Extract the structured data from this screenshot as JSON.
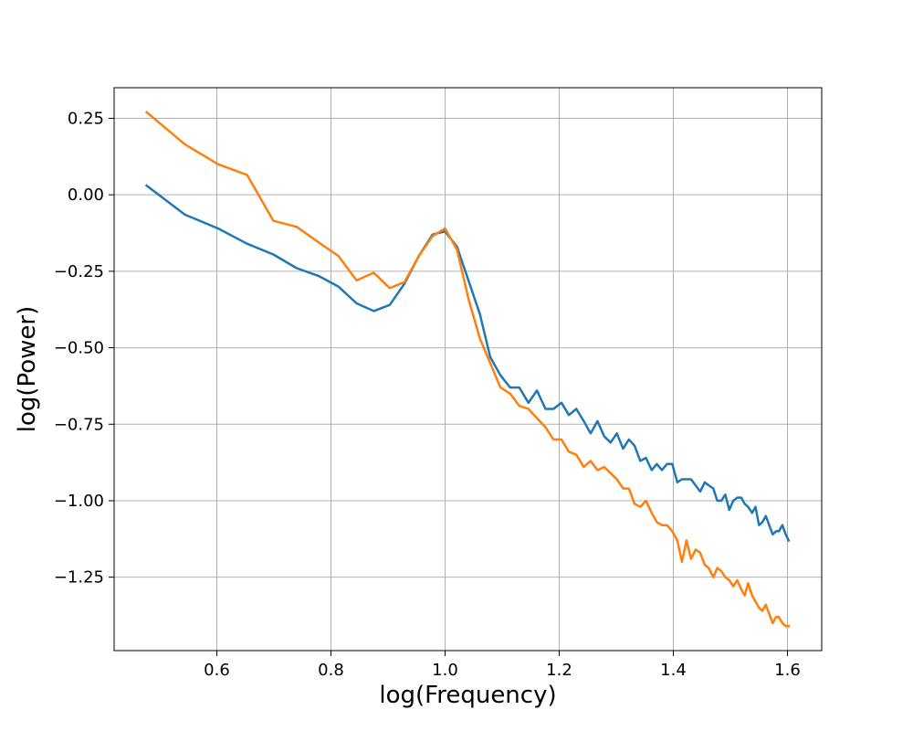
{
  "chart_data": {
    "type": "line",
    "title": "",
    "xlabel": "log(Frequency)",
    "ylabel": "log(Power)",
    "xlim": [
      0.42,
      1.66
    ],
    "ylim": [
      -1.49,
      0.35
    ],
    "xticks": [
      0.6,
      0.8,
      1.0,
      1.2,
      1.4,
      1.6
    ],
    "xtick_labels": [
      "0.6",
      "0.8",
      "1.0",
      "1.2",
      "1.4",
      "1.6"
    ],
    "yticks": [
      0.25,
      0.0,
      -0.25,
      -0.5,
      -0.75,
      -1.0,
      -1.25
    ],
    "ytick_labels": [
      "0.25",
      "0.00",
      "−0.25",
      "−0.50",
      "−0.75",
      "−1.00",
      "−1.25"
    ],
    "grid": true,
    "legend": "none",
    "series": [
      {
        "color": "#1f77b4",
        "x": [
          0.477,
          0.544,
          0.602,
          0.653,
          0.699,
          0.74,
          0.778,
          0.813,
          0.845,
          0.875,
          0.903,
          0.929,
          0.954,
          0.978,
          1.0,
          1.021,
          1.041,
          1.061,
          1.079,
          1.097,
          1.114,
          1.13,
          1.146,
          1.161,
          1.176,
          1.19,
          1.204,
          1.217,
          1.23,
          1.243,
          1.255,
          1.267,
          1.279,
          1.29,
          1.301,
          1.312,
          1.322,
          1.332,
          1.342,
          1.352,
          1.362,
          1.371,
          1.38,
          1.389,
          1.398,
          1.407,
          1.415,
          1.423,
          1.431,
          1.439,
          1.447,
          1.455,
          1.462,
          1.47,
          1.477,
          1.484,
          1.491,
          1.498,
          1.505,
          1.512,
          1.519,
          1.525,
          1.531,
          1.538,
          1.544,
          1.55,
          1.556,
          1.562,
          1.568,
          1.574,
          1.58,
          1.585,
          1.591,
          1.597,
          1.602
        ],
        "y": [
          0.03,
          -0.065,
          -0.11,
          -0.16,
          -0.195,
          -0.24,
          -0.265,
          -0.3,
          -0.355,
          -0.38,
          -0.36,
          -0.29,
          -0.2,
          -0.13,
          -0.12,
          -0.17,
          -0.28,
          -0.39,
          -0.53,
          -0.59,
          -0.63,
          -0.63,
          -0.68,
          -0.64,
          -0.7,
          -0.7,
          -0.68,
          -0.72,
          -0.7,
          -0.74,
          -0.78,
          -0.74,
          -0.79,
          -0.81,
          -0.78,
          -0.83,
          -0.8,
          -0.82,
          -0.87,
          -0.86,
          -0.9,
          -0.88,
          -0.9,
          -0.88,
          -0.88,
          -0.94,
          -0.93,
          -0.93,
          -0.93,
          -0.95,
          -0.97,
          -0.94,
          -0.95,
          -0.96,
          -1.0,
          -1.0,
          -0.98,
          -1.03,
          -1.0,
          -0.99,
          -0.99,
          -1.01,
          -1.02,
          -1.04,
          -1.02,
          -1.08,
          -1.07,
          -1.05,
          -1.08,
          -1.11,
          -1.1,
          -1.1,
          -1.08,
          -1.11,
          -1.13
        ]
      },
      {
        "color": "#ff7f0e",
        "x": [
          0.477,
          0.544,
          0.602,
          0.653,
          0.699,
          0.74,
          0.778,
          0.813,
          0.845,
          0.875,
          0.903,
          0.929,
          0.954,
          0.978,
          1.0,
          1.021,
          1.041,
          1.061,
          1.079,
          1.097,
          1.114,
          1.13,
          1.146,
          1.161,
          1.176,
          1.19,
          1.204,
          1.217,
          1.23,
          1.243,
          1.255,
          1.267,
          1.279,
          1.29,
          1.301,
          1.312,
          1.322,
          1.332,
          1.342,
          1.352,
          1.362,
          1.371,
          1.38,
          1.389,
          1.398,
          1.407,
          1.415,
          1.423,
          1.431,
          1.439,
          1.447,
          1.455,
          1.462,
          1.47,
          1.477,
          1.484,
          1.491,
          1.498,
          1.505,
          1.512,
          1.519,
          1.525,
          1.531,
          1.538,
          1.544,
          1.55,
          1.556,
          1.562,
          1.568,
          1.574,
          1.58,
          1.585,
          1.591,
          1.597,
          1.602
        ],
        "y": [
          0.27,
          0.165,
          0.1,
          0.065,
          -0.085,
          -0.105,
          -0.155,
          -0.2,
          -0.28,
          -0.255,
          -0.305,
          -0.285,
          -0.2,
          -0.135,
          -0.11,
          -0.18,
          -0.34,
          -0.47,
          -0.55,
          -0.63,
          -0.65,
          -0.69,
          -0.7,
          -0.73,
          -0.76,
          -0.8,
          -0.8,
          -0.84,
          -0.85,
          -0.89,
          -0.87,
          -0.9,
          -0.89,
          -0.91,
          -0.93,
          -0.96,
          -0.96,
          -1.01,
          -1.02,
          -1.0,
          -1.04,
          -1.07,
          -1.08,
          -1.08,
          -1.1,
          -1.13,
          -1.2,
          -1.13,
          -1.19,
          -1.16,
          -1.17,
          -1.21,
          -1.22,
          -1.25,
          -1.22,
          -1.23,
          -1.25,
          -1.26,
          -1.28,
          -1.26,
          -1.29,
          -1.31,
          -1.27,
          -1.31,
          -1.33,
          -1.35,
          -1.36,
          -1.34,
          -1.37,
          -1.4,
          -1.38,
          -1.38,
          -1.4,
          -1.41,
          -1.41
        ]
      }
    ]
  }
}
